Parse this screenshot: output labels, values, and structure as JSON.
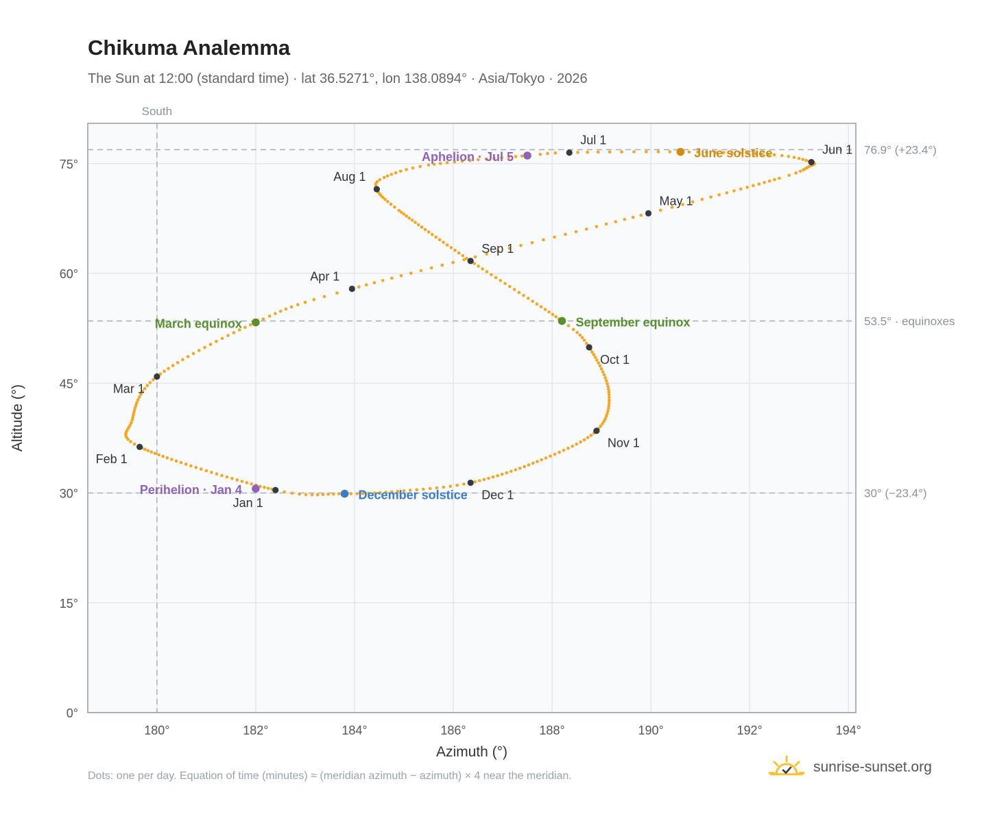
{
  "header": {
    "title": "Chikuma Analemma",
    "subtitle": "The Sun at 12:00 (standard time) · lat 36.5271°, lon 138.0894° · Asia/Tokyo · 2026"
  },
  "footer": {
    "note": "Dots: one per day. Equation of time (minutes) ≈ (meridian azimuth − azimuth) × 4 near the meridian.",
    "brand": "sunrise-sunset.org"
  },
  "colors": {
    "path": "#f5a623",
    "month_marker": "#333a44",
    "equinox": "#5a8f2e",
    "solstice_june": "#d48a12",
    "solstice_december": "#3a7cc9",
    "apsis": "#8e62b8",
    "reference": "#aab4be",
    "plot_bg": "#f8fafc",
    "frame": "#9aa3ad"
  },
  "chart_data": {
    "type": "scatter",
    "xlabel": "Azimuth (°)",
    "ylabel": "Altitude (°)",
    "xlim": [
      178.6,
      194.15
    ],
    "ylim": [
      0,
      80.5
    ],
    "x_ticks": [
      180,
      182,
      184,
      186,
      188,
      190,
      192,
      194
    ],
    "y_ticks": [
      0,
      15,
      30,
      45,
      60,
      75
    ],
    "x_tick_suffix": "°",
    "y_tick_suffix": "°",
    "grid": true,
    "south_line": {
      "x": 180,
      "label": "South"
    },
    "reference_lines": [
      {
        "y": 76.9,
        "label": "76.9° (+23.4°)"
      },
      {
        "y": 53.5,
        "label": "53.5° · equinoxes"
      },
      {
        "y": 30.0,
        "label": "30° (−23.4°)"
      }
    ],
    "path_keypoints": [
      {
        "day": 1,
        "az": 182.4,
        "alt": 30.4
      },
      {
        "day": 32,
        "az": 179.65,
        "alt": 36.3
      },
      {
        "day": 44,
        "az": 179.5,
        "alt": 40.0
      },
      {
        "day": 60,
        "az": 180.0,
        "alt": 45.9
      },
      {
        "day": 79,
        "az": 182.0,
        "alt": 53.3
      },
      {
        "day": 91,
        "az": 183.95,
        "alt": 57.9
      },
      {
        "day": 121,
        "az": 189.95,
        "alt": 68.2
      },
      {
        "day": 138,
        "az": 192.6,
        "alt": 73.0
      },
      {
        "day": 145,
        "az": 193.2,
        "alt": 74.6
      },
      {
        "day": 152,
        "az": 193.25,
        "alt": 75.2
      },
      {
        "day": 160,
        "az": 192.5,
        "alt": 76.2
      },
      {
        "day": 172,
        "az": 190.6,
        "alt": 76.6
      },
      {
        "day": 182,
        "az": 188.35,
        "alt": 76.5
      },
      {
        "day": 186,
        "az": 187.5,
        "alt": 76.1
      },
      {
        "day": 200,
        "az": 185.5,
        "alt": 74.8
      },
      {
        "day": 208,
        "az": 184.6,
        "alt": 73.1
      },
      {
        "day": 213,
        "az": 184.45,
        "alt": 71.5
      },
      {
        "day": 223,
        "az": 184.9,
        "alt": 68.6
      },
      {
        "day": 244,
        "az": 186.35,
        "alt": 61.7
      },
      {
        "day": 266,
        "az": 188.2,
        "alt": 53.5
      },
      {
        "day": 274,
        "az": 188.75,
        "alt": 49.9
      },
      {
        "day": 290,
        "az": 189.15,
        "alt": 43.8
      },
      {
        "day": 305,
        "az": 188.9,
        "alt": 38.5
      },
      {
        "day": 320,
        "az": 187.7,
        "alt": 34.3
      },
      {
        "day": 335,
        "az": 186.35,
        "alt": 31.4
      },
      {
        "day": 345,
        "az": 185.0,
        "alt": 30.3
      },
      {
        "day": 355,
        "az": 183.8,
        "alt": 29.9
      },
      {
        "day": 366,
        "az": 182.4,
        "alt": 30.4
      }
    ],
    "month_markers": [
      {
        "label": "Jan 1",
        "az": 182.4,
        "alt": 30.4,
        "anchor": "end",
        "dx": -18,
        "dy": 25
      },
      {
        "label": "Feb 1",
        "az": 179.65,
        "alt": 36.3,
        "anchor": "end",
        "dx": -18,
        "dy": 24
      },
      {
        "label": "Mar 1",
        "az": 180.0,
        "alt": 45.9,
        "anchor": "end",
        "dx": -18,
        "dy": 24
      },
      {
        "label": "Apr 1",
        "az": 183.95,
        "alt": 57.9,
        "anchor": "end",
        "dx": -18,
        "dy": -12
      },
      {
        "label": "May 1",
        "az": 189.95,
        "alt": 68.2,
        "anchor": "start",
        "dx": 16,
        "dy": -12
      },
      {
        "label": "Jun 1",
        "az": 193.25,
        "alt": 75.2,
        "anchor": "start",
        "dx": 16,
        "dy": -12
      },
      {
        "label": "Jul 1",
        "az": 188.35,
        "alt": 76.5,
        "anchor": "start",
        "dx": 16,
        "dy": -12
      },
      {
        "label": "Aug 1",
        "az": 184.45,
        "alt": 71.5,
        "anchor": "end",
        "dx": -16,
        "dy": -12
      },
      {
        "label": "Sep 1",
        "az": 186.35,
        "alt": 61.7,
        "anchor": "start",
        "dx": 16,
        "dy": -12
      },
      {
        "label": "Oct 1",
        "az": 188.75,
        "alt": 49.9,
        "anchor": "start",
        "dx": 16,
        "dy": 24
      },
      {
        "label": "Nov 1",
        "az": 188.9,
        "alt": 38.5,
        "anchor": "start",
        "dx": 16,
        "dy": 24
      },
      {
        "label": "Dec 1",
        "az": 186.35,
        "alt": 31.4,
        "anchor": "start",
        "dx": 16,
        "dy": 24
      }
    ],
    "events": [
      {
        "label": "March equinox",
        "az": 182.0,
        "alt": 53.3,
        "color": "#5a8f2e",
        "anchor": "end",
        "dx": -20,
        "dy": 8
      },
      {
        "label": "September equinox",
        "az": 188.2,
        "alt": 53.5,
        "color": "#5a8f2e",
        "anchor": "start",
        "dx": 20,
        "dy": 8
      },
      {
        "label": "June solstice",
        "az": 190.6,
        "alt": 76.6,
        "color": "#d48a12",
        "anchor": "start",
        "dx": 20,
        "dy": 8
      },
      {
        "label": "December solstice",
        "az": 183.8,
        "alt": 29.9,
        "color": "#3a7cc9",
        "anchor": "start",
        "dx": 20,
        "dy": 8
      },
      {
        "label": "Aphelion · Jul 5",
        "az": 187.5,
        "alt": 76.1,
        "color": "#8e62b8",
        "anchor": "end",
        "dx": -20,
        "dy": 8
      },
      {
        "label": "Perihelion · Jan 4",
        "az": 182.0,
        "alt": 30.6,
        "color": "#8e62b8",
        "anchor": "end",
        "dx": -20,
        "dy": 8
      }
    ]
  }
}
